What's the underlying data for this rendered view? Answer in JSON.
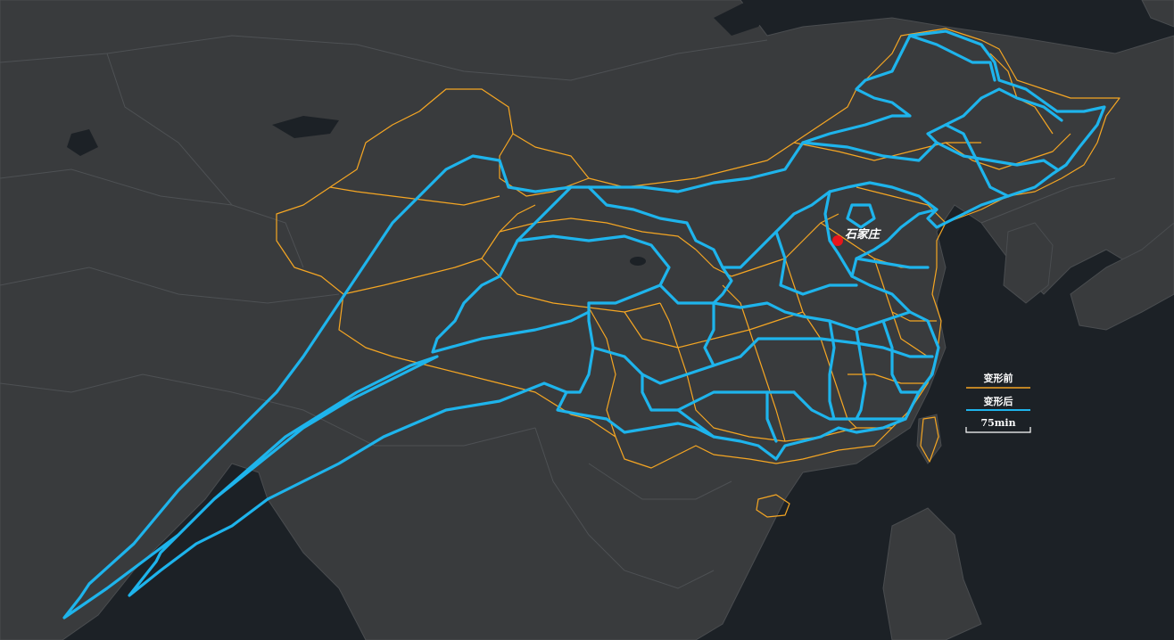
{
  "map": {
    "city": {
      "name": "石家庄",
      "marker_color": "#e8151b"
    },
    "legend": {
      "before_label": "变形前",
      "before_color": "#f5a623",
      "after_label": "变形后",
      "after_color": "#1eb4ec",
      "scale_label": "75min"
    },
    "colors": {
      "ocean": "#1c2126",
      "land": "#393b3d"
    }
  }
}
